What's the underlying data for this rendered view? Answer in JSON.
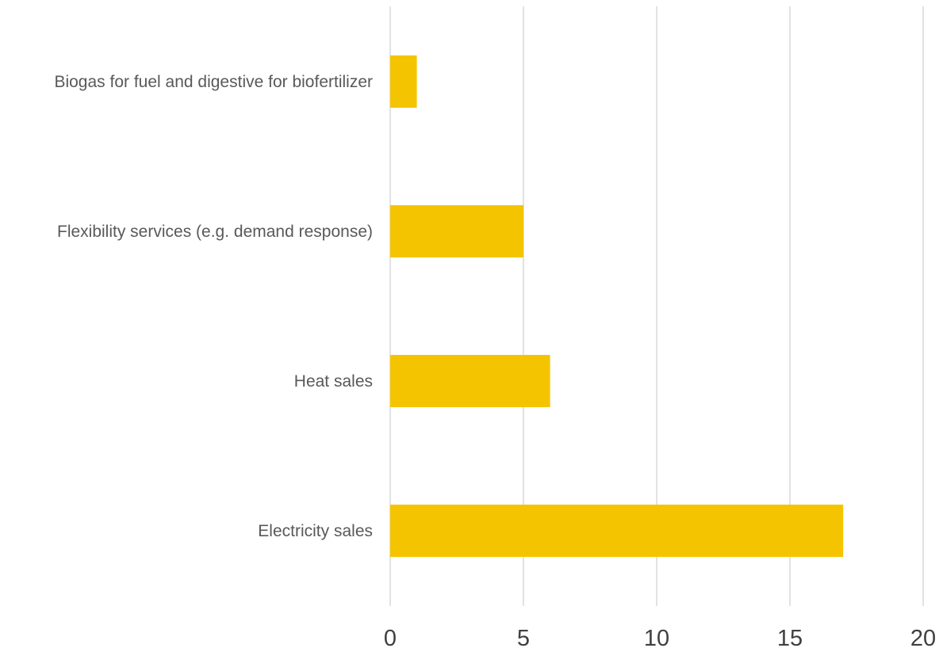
{
  "chart_data": {
    "type": "bar",
    "orientation": "horizontal",
    "categories": [
      "Biogas for fuel and digestive for biofertilizer",
      "Flexibility services (e.g. demand response)",
      "Heat sales",
      "Electricity sales"
    ],
    "values": [
      1,
      5,
      6,
      17
    ],
    "xlim": [
      0,
      20
    ],
    "xticks": [
      0,
      5,
      10,
      15,
      20
    ],
    "xtick_labels": [
      "0",
      "5",
      "10",
      "15",
      "20"
    ],
    "grid": "vertical",
    "legend": "none",
    "bar_color": "#F5C400",
    "title": "",
    "xlabel": "",
    "ylabel": ""
  }
}
